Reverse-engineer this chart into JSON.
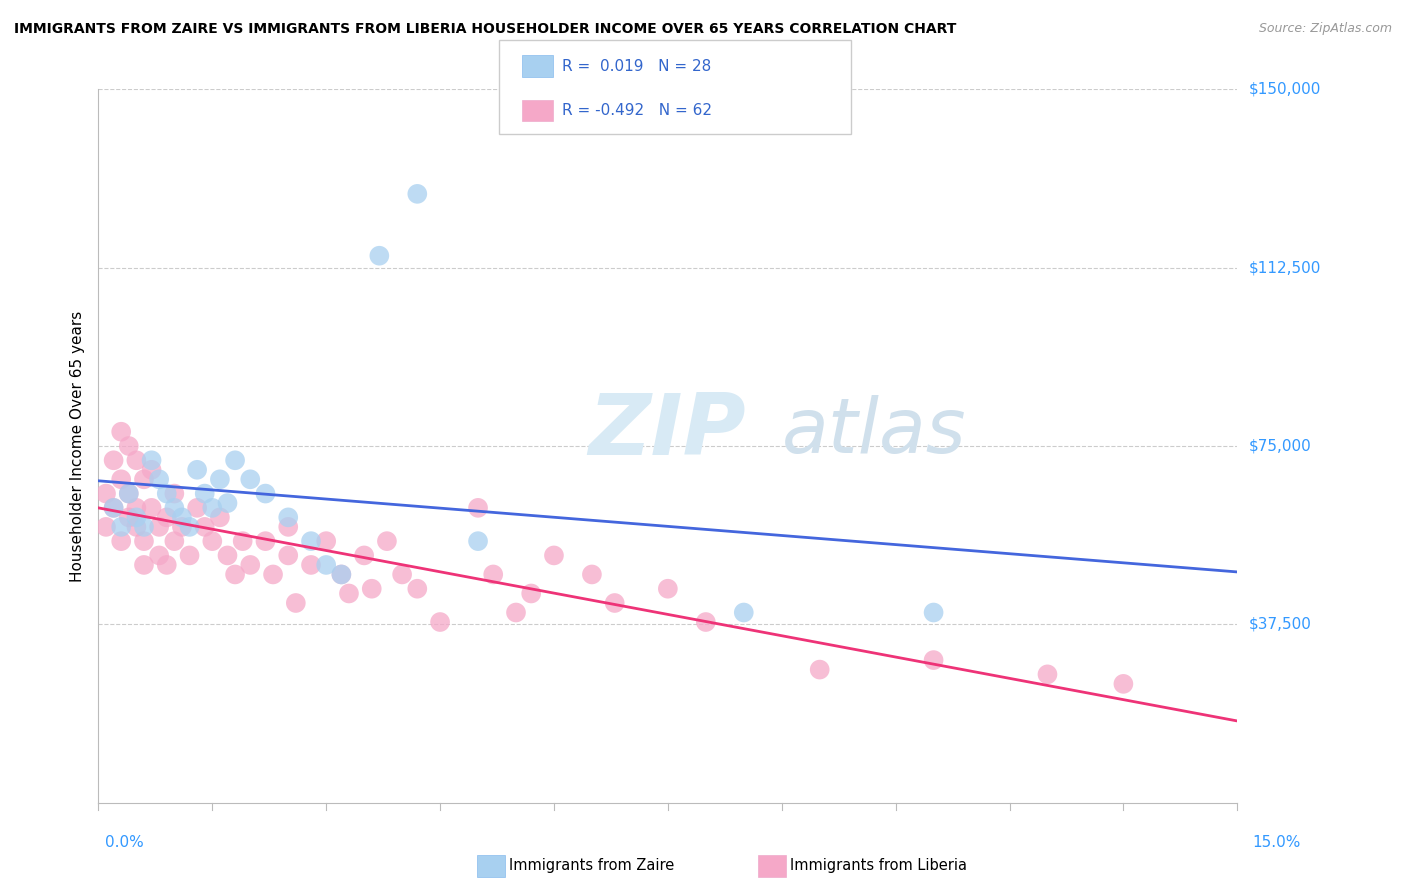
{
  "title": "IMMIGRANTS FROM ZAIRE VS IMMIGRANTS FROM LIBERIA HOUSEHOLDER INCOME OVER 65 YEARS CORRELATION CHART",
  "source": "Source: ZipAtlas.com",
  "ylabel": "Householder Income Over 65 years",
  "xmin": 0.0,
  "xmax": 0.15,
  "ymin": 0,
  "ymax": 150000,
  "yticks": [
    0,
    37500,
    75000,
    112500,
    150000
  ],
  "ytick_labels": [
    "",
    "$37,500",
    "$75,000",
    "$112,500",
    "$150,000"
  ],
  "legend_zaire_r": "0.019",
  "legend_zaire_n": "28",
  "legend_liberia_r": "-0.492",
  "legend_liberia_n": "62",
  "color_zaire": "#a8d0f0",
  "color_liberia": "#f5a8c8",
  "line_color_zaire": "#4466dd",
  "line_color_liberia": "#ee3377",
  "watermark_zip": "ZIP",
  "watermark_atlas": "atlas",
  "zaire_points": [
    [
      0.002,
      62000
    ],
    [
      0.003,
      58000
    ],
    [
      0.004,
      65000
    ],
    [
      0.005,
      60000
    ],
    [
      0.006,
      58000
    ],
    [
      0.007,
      72000
    ],
    [
      0.008,
      68000
    ],
    [
      0.009,
      65000
    ],
    [
      0.01,
      62000
    ],
    [
      0.011,
      60000
    ],
    [
      0.012,
      58000
    ],
    [
      0.013,
      70000
    ],
    [
      0.014,
      65000
    ],
    [
      0.015,
      62000
    ],
    [
      0.016,
      68000
    ],
    [
      0.017,
      63000
    ],
    [
      0.018,
      72000
    ],
    [
      0.02,
      68000
    ],
    [
      0.022,
      65000
    ],
    [
      0.025,
      60000
    ],
    [
      0.028,
      55000
    ],
    [
      0.03,
      50000
    ],
    [
      0.032,
      48000
    ],
    [
      0.037,
      115000
    ],
    [
      0.042,
      128000
    ],
    [
      0.05,
      55000
    ],
    [
      0.085,
      40000
    ],
    [
      0.11,
      40000
    ]
  ],
  "liberia_points": [
    [
      0.001,
      65000
    ],
    [
      0.001,
      58000
    ],
    [
      0.002,
      62000
    ],
    [
      0.002,
      72000
    ],
    [
      0.003,
      78000
    ],
    [
      0.003,
      68000
    ],
    [
      0.003,
      55000
    ],
    [
      0.004,
      75000
    ],
    [
      0.004,
      65000
    ],
    [
      0.004,
      60000
    ],
    [
      0.005,
      72000
    ],
    [
      0.005,
      62000
    ],
    [
      0.005,
      58000
    ],
    [
      0.006,
      68000
    ],
    [
      0.006,
      55000
    ],
    [
      0.006,
      50000
    ],
    [
      0.007,
      62000
    ],
    [
      0.007,
      70000
    ],
    [
      0.008,
      58000
    ],
    [
      0.008,
      52000
    ],
    [
      0.009,
      60000
    ],
    [
      0.009,
      50000
    ],
    [
      0.01,
      65000
    ],
    [
      0.01,
      55000
    ],
    [
      0.011,
      58000
    ],
    [
      0.012,
      52000
    ],
    [
      0.013,
      62000
    ],
    [
      0.014,
      58000
    ],
    [
      0.015,
      55000
    ],
    [
      0.016,
      60000
    ],
    [
      0.017,
      52000
    ],
    [
      0.018,
      48000
    ],
    [
      0.019,
      55000
    ],
    [
      0.02,
      50000
    ],
    [
      0.022,
      55000
    ],
    [
      0.023,
      48000
    ],
    [
      0.025,
      58000
    ],
    [
      0.025,
      52000
    ],
    [
      0.026,
      42000
    ],
    [
      0.028,
      50000
    ],
    [
      0.03,
      55000
    ],
    [
      0.032,
      48000
    ],
    [
      0.033,
      44000
    ],
    [
      0.035,
      52000
    ],
    [
      0.036,
      45000
    ],
    [
      0.038,
      55000
    ],
    [
      0.04,
      48000
    ],
    [
      0.042,
      45000
    ],
    [
      0.045,
      38000
    ],
    [
      0.05,
      62000
    ],
    [
      0.052,
      48000
    ],
    [
      0.055,
      40000
    ],
    [
      0.057,
      44000
    ],
    [
      0.06,
      52000
    ],
    [
      0.065,
      48000
    ],
    [
      0.068,
      42000
    ],
    [
      0.075,
      45000
    ],
    [
      0.08,
      38000
    ],
    [
      0.095,
      28000
    ],
    [
      0.11,
      30000
    ],
    [
      0.125,
      27000
    ],
    [
      0.135,
      25000
    ]
  ]
}
